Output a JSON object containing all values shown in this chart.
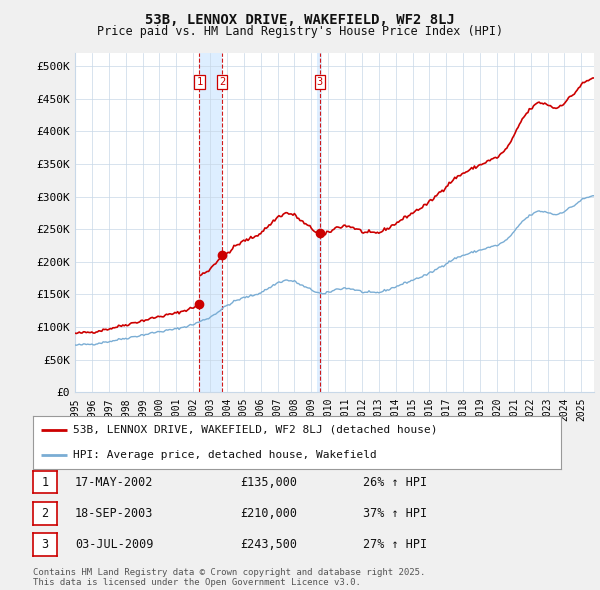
{
  "title": "53B, LENNOX DRIVE, WAKEFIELD, WF2 8LJ",
  "subtitle": "Price paid vs. HM Land Registry's House Price Index (HPI)",
  "background_color": "#f0f0f0",
  "plot_bg_color": "#ffffff",
  "hpi_color": "#7aadd4",
  "price_color": "#cc0000",
  "vline_color": "#cc0000",
  "highlight_color": "#ddeeff",
  "ylim": [
    0,
    520000
  ],
  "yticks": [
    0,
    50000,
    100000,
    150000,
    200000,
    250000,
    300000,
    350000,
    400000,
    450000,
    500000
  ],
  "ytick_labels": [
    "£0",
    "£50K",
    "£100K",
    "£150K",
    "£200K",
    "£250K",
    "£300K",
    "£350K",
    "£400K",
    "£450K",
    "£500K"
  ],
  "xmin": 1995.0,
  "xmax": 2025.75,
  "transactions": [
    {
      "id": 1,
      "date_x": 2002.37,
      "price": 135000
    },
    {
      "id": 2,
      "date_x": 2003.71,
      "price": 210000
    },
    {
      "id": 3,
      "date_x": 2009.5,
      "price": 243500
    }
  ],
  "legend_entries": [
    {
      "label": "53B, LENNOX DRIVE, WAKEFIELD, WF2 8LJ (detached house)",
      "color": "#cc0000"
    },
    {
      "label": "HPI: Average price, detached house, Wakefield",
      "color": "#7aadd4"
    }
  ],
  "table_rows": [
    {
      "id": 1,
      "date": "17-MAY-2002",
      "price": "£135,000",
      "hpi": "26% ↑ HPI"
    },
    {
      "id": 2,
      "date": "18-SEP-2003",
      "price": "£210,000",
      "hpi": "37% ↑ HPI"
    },
    {
      "id": 3,
      "date": "03-JUL-2009",
      "price": "£243,500",
      "hpi": "27% ↑ HPI"
    }
  ],
  "footer": "Contains HM Land Registry data © Crown copyright and database right 2025.\nThis data is licensed under the Open Government Licence v3.0."
}
